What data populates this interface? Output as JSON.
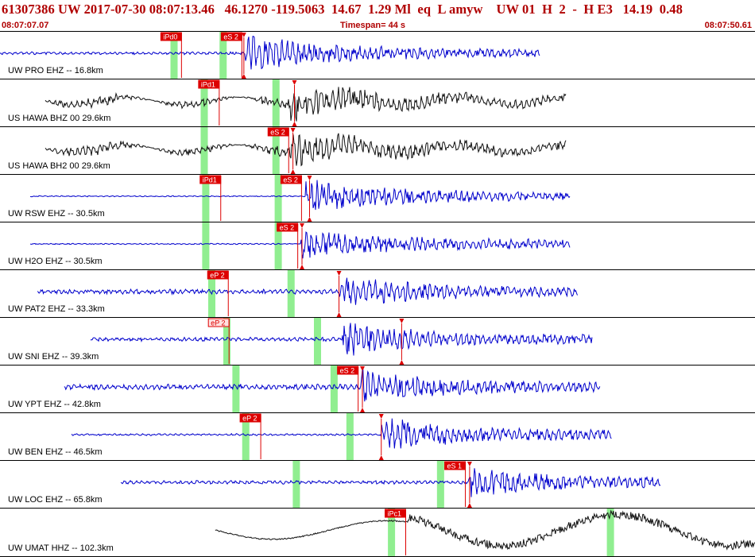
{
  "header": {
    "title": "61307386 UW 2017-07-30 08:07:13.46   46.1270 -119.5063  14.67  1.29 Ml  eq  L amyw    UW 01  H  2  -  H E3   14.19  0.48",
    "start_time": "08:07:07.07",
    "timespan": "Timespan=  44 s",
    "end_time": "08:07:50.61"
  },
  "colors": {
    "text": "#b00000",
    "trace_blue": "#0000cc",
    "trace_black": "#111111",
    "pick_box": "#dd0000",
    "window_green": "#90ee90"
  },
  "traces": [
    {
      "label": "UW PRO EHZ -- 16.8km",
      "color": "blue",
      "start": 0.0,
      "end": 0.715,
      "arrival": 0.325,
      "amp": 0.75,
      "noise": 0.07,
      "windows": [
        0.23,
        0.295
      ],
      "picks": [
        {
          "label": "iPd0",
          "t": 0.213,
          "type": "P"
        },
        {
          "label": "eS 2",
          "t": 0.293,
          "type": "S"
        }
      ],
      "markers": [
        0.323
      ]
    },
    {
      "label": "US HAWA BHZ 00 29.6km",
      "color": "black",
      "start": 0.06,
      "end": 0.75,
      "arrival": 0.385,
      "amp": 0.72,
      "noise": 0.05,
      "windows": [
        0.27,
        0.365
      ],
      "picks": [
        {
          "label": "iPd1",
          "t": 0.263,
          "type": "P"
        }
      ],
      "markers": [
        0.39
      ]
    },
    {
      "label": "US HAWA BH2 00 29.6km",
      "color": "black",
      "start": 0.06,
      "end": 0.75,
      "arrival": 0.385,
      "amp": 0.72,
      "noise": 0.05,
      "windows": [
        0.27,
        0.365
      ],
      "picks": [
        {
          "label": "eS 2",
          "t": 0.355,
          "type": "S"
        }
      ],
      "markers": [
        0.388
      ]
    },
    {
      "label": "UW RSW EHZ -- 30.5km",
      "color": "blue",
      "start": 0.04,
      "end": 0.755,
      "arrival": 0.405,
      "amp": 0.7,
      "noise": 0.03,
      "windows": [
        0.272,
        0.368
      ],
      "picks": [
        {
          "label": "iPd1",
          "t": 0.265,
          "type": "P"
        },
        {
          "label": "eS 2",
          "t": 0.372,
          "type": "S"
        }
      ],
      "markers": [
        0.41
      ]
    },
    {
      "label": "UW H2O EHZ -- 30.5km",
      "color": "blue",
      "start": 0.04,
      "end": 0.755,
      "arrival": 0.398,
      "amp": 0.6,
      "noise": 0.03,
      "windows": [
        0.272,
        0.368
      ],
      "picks": [
        {
          "label": "eS 2",
          "t": 0.367,
          "type": "S"
        }
      ],
      "markers": [
        0.4
      ]
    },
    {
      "label": "UW PAT2 EHZ -- 33.3km",
      "color": "blue",
      "start": 0.05,
      "end": 0.765,
      "arrival": 0.45,
      "amp": 0.65,
      "noise": 0.12,
      "windows": [
        0.28,
        0.385
      ],
      "picks": [
        {
          "label": "eP 2",
          "t": 0.275,
          "type": "P"
        }
      ],
      "markers": [
        0.449
      ]
    },
    {
      "label": "UW SNI EHZ -- 39.3km",
      "color": "blue",
      "start": 0.12,
      "end": 0.785,
      "arrival": 0.453,
      "amp": 0.7,
      "noise": 0.1,
      "windows": [
        0.3,
        0.42
      ],
      "picks": [
        {
          "label": "eP 2",
          "t": 0.276,
          "type": "P-light"
        }
      ],
      "markers": [
        0.532
      ]
    },
    {
      "label": "UW YPT EHZ -- 42.8km",
      "color": "blue",
      "start": 0.085,
      "end": 0.795,
      "arrival": 0.478,
      "amp": 0.7,
      "noise": 0.14,
      "windows": [
        0.312,
        0.442
      ],
      "picks": [
        {
          "label": "eS 2",
          "t": 0.447,
          "type": "S"
        }
      ],
      "markers": [
        0.48
      ]
    },
    {
      "label": "UW BEN EHZ -- 46.5km",
      "color": "blue",
      "start": 0.095,
      "end": 0.81,
      "arrival": 0.504,
      "amp": 0.7,
      "noise": 0.05,
      "windows": [
        0.325,
        0.463
      ],
      "picks": [
        {
          "label": "eP 2",
          "t": 0.318,
          "type": "P"
        }
      ],
      "markers": [
        0.505
      ]
    },
    {
      "label": "UW LOC EHZ -- 65.8km",
      "color": "blue",
      "start": 0.16,
      "end": 0.875,
      "arrival": 0.621,
      "amp": 0.6,
      "noise": 0.09,
      "windows": [
        0.392,
        0.583
      ],
      "picks": [
        {
          "label": "eS 1",
          "t": 0.589,
          "type": "S"
        }
      ],
      "markers": [
        0.622
      ]
    },
    {
      "label": "UW UMAT HHZ -- 102.3km",
      "color": "black",
      "start": 0.285,
      "end": 1.0,
      "arrival": 0.54,
      "amp": 0.55,
      "noise": 0.05,
      "windows": [
        0.518,
        0.808
      ],
      "picks": [
        {
          "label": "iPc1",
          "t": 0.51,
          "type": "P"
        }
      ],
      "markers": [],
      "style": "longperiod"
    }
  ]
}
